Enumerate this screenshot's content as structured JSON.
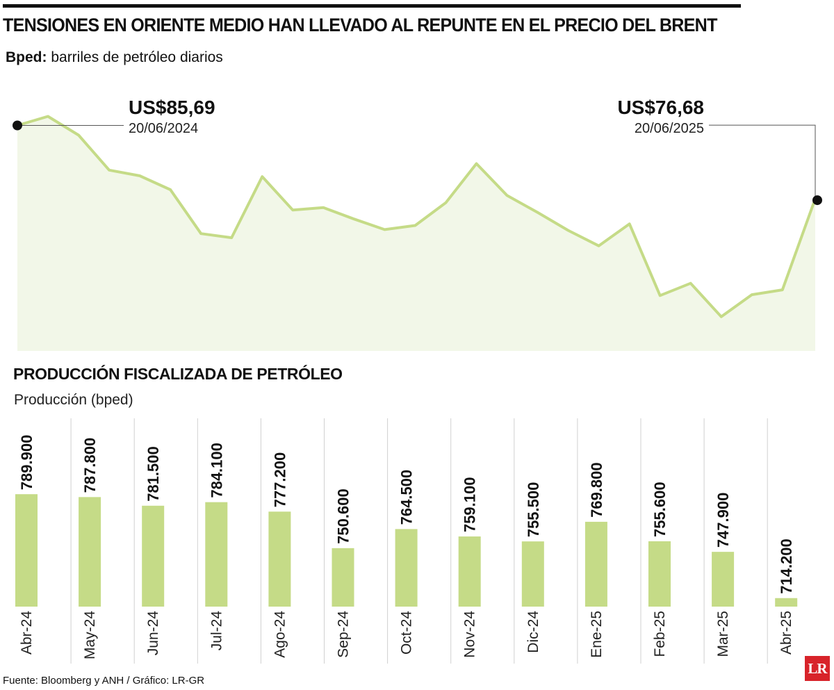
{
  "header": {
    "title": "TENSIONES EN ORIENTE MEDIO HAN LLEVADO AL REPUNTE EN EL PRECIO DEL BRENT",
    "subtitle_bold": "Bped:",
    "subtitle_rest": " barriles de petróleo diarios"
  },
  "chart_data": [
    {
      "type": "area",
      "title": "",
      "x": [
        "2024-06-20",
        "2024-07-04",
        "2024-07-18",
        "2024-08-01",
        "2024-08-15",
        "2024-08-29",
        "2024-09-12",
        "2024-09-26",
        "2024-10-10",
        "2024-10-24",
        "2024-11-07",
        "2024-11-21",
        "2024-12-05",
        "2024-12-19",
        "2025-01-02",
        "2025-01-16",
        "2025-01-30",
        "2025-02-13",
        "2025-02-27",
        "2025-03-13",
        "2025-03-27",
        "2025-04-10",
        "2025-04-24",
        "2025-05-08",
        "2025-05-22",
        "2025-06-05",
        "2025-06-20"
      ],
      "values": [
        85.69,
        86.8,
        84.5,
        80.2,
        79.5,
        77.8,
        72.4,
        71.9,
        79.4,
        75.3,
        75.6,
        74.2,
        72.9,
        73.4,
        76.2,
        81.0,
        77.1,
        75.0,
        72.8,
        70.9,
        73.6,
        64.8,
        66.3,
        62.2,
        64.9,
        65.5,
        76.68
      ],
      "ylim": [
        58,
        90
      ],
      "color": "#c5db87",
      "fill": "#f2f7e8",
      "annotations": [
        {
          "value": "US$85,69",
          "date": "20/06/2024"
        },
        {
          "value": "US$76,68",
          "date": "20/06/2025"
        }
      ]
    },
    {
      "type": "bar",
      "title": "PRODUCCIÓN FISCALIZADA DE PETRÓLEO",
      "ylabel": "Producción (bped)",
      "categories": [
        "Abr-24",
        "May-24",
        "Jun-24",
        "Jul-24",
        "Ago-24",
        "Sep-24",
        "Oct-24",
        "Nov-24",
        "Dic-24",
        "Ene-25",
        "Feb-25",
        "Mar-25",
        "Abr-25"
      ],
      "values": [
        789900,
        787800,
        781500,
        784100,
        777200,
        750600,
        764500,
        759100,
        755500,
        769800,
        755600,
        747900,
        714200
      ],
      "value_labels": [
        "789.900",
        "787.800",
        "781.500",
        "784.100",
        "777.200",
        "750.600",
        "764.500",
        "759.100",
        "755.500",
        "769.800",
        "755.600",
        "747.900",
        "714.200"
      ],
      "ylim": [
        708000,
        790000
      ],
      "color": "#c5db87",
      "grid": true
    }
  ],
  "footer": {
    "source": "Fuente: Bloomberg y ANH / Gráfico: LR-GR",
    "logo": "LR"
  }
}
